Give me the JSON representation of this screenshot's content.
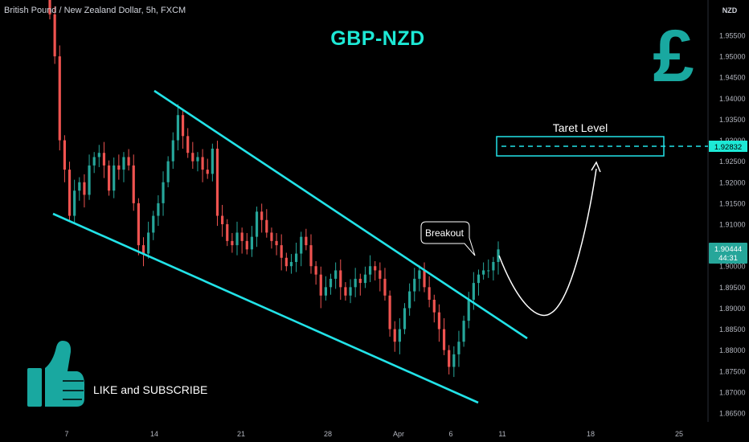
{
  "header": {
    "symbol_line": "British Pound / New Zealand Dollar, 5h, FXCM",
    "title": "GBP-NZD",
    "currency_symbol": "£"
  },
  "annotations": {
    "breakout_label": "Breakout",
    "target_label": "Taret Level",
    "cta_text": "LIKE and SUBSCRIBE"
  },
  "icons": [
    "pound-sign-icon",
    "thumbs-up-icon",
    "curved-arrow-icon"
  ],
  "colors": {
    "background": "#000000",
    "up_candle": "#26a69a",
    "down_candle": "#ef5350",
    "channel": "#22e3e8",
    "accent_text": "#1de9d6",
    "current_price_badge": "#26a69a",
    "target_badge": "#1de9d6"
  },
  "chart_data": {
    "type": "candlestick",
    "symbol": "British Pound / New Zealand Dollar",
    "timeframe": "5h",
    "source": "FXCM",
    "y_axis": {
      "unit": "NZD",
      "range": [
        1.865,
        1.96
      ],
      "ticks": [
        "1.95500",
        "1.95000",
        "1.94500",
        "1.94000",
        "1.93500",
        "1.93000",
        "1.92500",
        "1.92000",
        "1.91500",
        "1.91000",
        "1.90500",
        "1.90000",
        "1.89500",
        "1.89000",
        "1.88500",
        "1.88000",
        "1.87500",
        "1.87000",
        "1.86500"
      ]
    },
    "x_axis": {
      "ticks": [
        "7",
        "14",
        "21",
        "28",
        "Apr",
        "6",
        "11",
        "18",
        "25"
      ]
    },
    "current_price": "1.90444",
    "countdown": "44:31",
    "target_price": "1.92832",
    "closes": [
      1.96,
      1.95,
      1.93,
      1.923,
      1.912,
      1.918,
      1.92,
      1.917,
      1.924,
      1.926,
      1.927,
      1.924,
      1.918,
      1.924,
      1.923,
      1.926,
      1.924,
      1.915,
      1.905,
      1.903,
      1.908,
      1.912,
      1.915,
      1.92,
      1.925,
      1.93,
      1.936,
      1.931,
      1.927,
      1.925,
      1.926,
      1.923,
      1.922,
      1.928,
      1.912,
      1.91,
      1.906,
      1.905,
      1.908,
      1.906,
      1.904,
      1.907,
      1.913,
      1.911,
      1.908,
      1.906,
      1.905,
      1.902,
      1.9,
      1.901,
      1.903,
      1.907,
      1.905,
      1.9,
      1.898,
      1.893,
      1.895,
      1.897,
      1.899,
      1.895,
      1.893,
      1.895,
      1.897,
      1.896,
      1.898,
      1.9,
      1.899,
      1.897,
      1.893,
      1.885,
      1.882,
      1.885,
      1.89,
      1.894,
      1.897,
      1.899,
      1.895,
      1.892,
      1.889,
      1.885,
      1.88,
      1.876,
      1.879,
      1.882,
      1.887,
      1.892,
      1.896,
      1.898,
      1.899,
      1.899,
      1.901,
      1.904
    ]
  }
}
